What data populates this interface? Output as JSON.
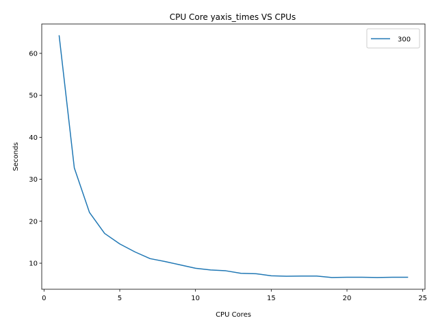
{
  "chart_data": {
    "type": "line",
    "title": "CPU Core yaxis_times VS CPUs",
    "xlabel": "CPU Cores",
    "ylabel": "Seconds",
    "xlim": [
      -0.15,
      25.15
    ],
    "ylim": [
      3.8,
      67.0
    ],
    "xticks": [
      0,
      5,
      10,
      15,
      20,
      25
    ],
    "yticks": [
      10,
      20,
      30,
      40,
      50,
      60
    ],
    "grid": false,
    "legend_position": "top-right",
    "series": [
      {
        "name": "300",
        "color": "#1f77b4",
        "x": [
          1,
          2,
          3,
          4,
          5,
          6,
          7,
          8,
          9,
          10,
          11,
          12,
          13,
          14,
          15,
          16,
          17,
          18,
          19,
          20,
          21,
          22,
          23,
          24
        ],
        "y": [
          64.2,
          32.7,
          22.1,
          17.1,
          14.6,
          12.7,
          11.1,
          10.4,
          9.6,
          8.8,
          8.4,
          8.2,
          7.6,
          7.5,
          7.0,
          6.9,
          6.95,
          6.95,
          6.6,
          6.65,
          6.65,
          6.6,
          6.65,
          6.65
        ]
      }
    ]
  }
}
